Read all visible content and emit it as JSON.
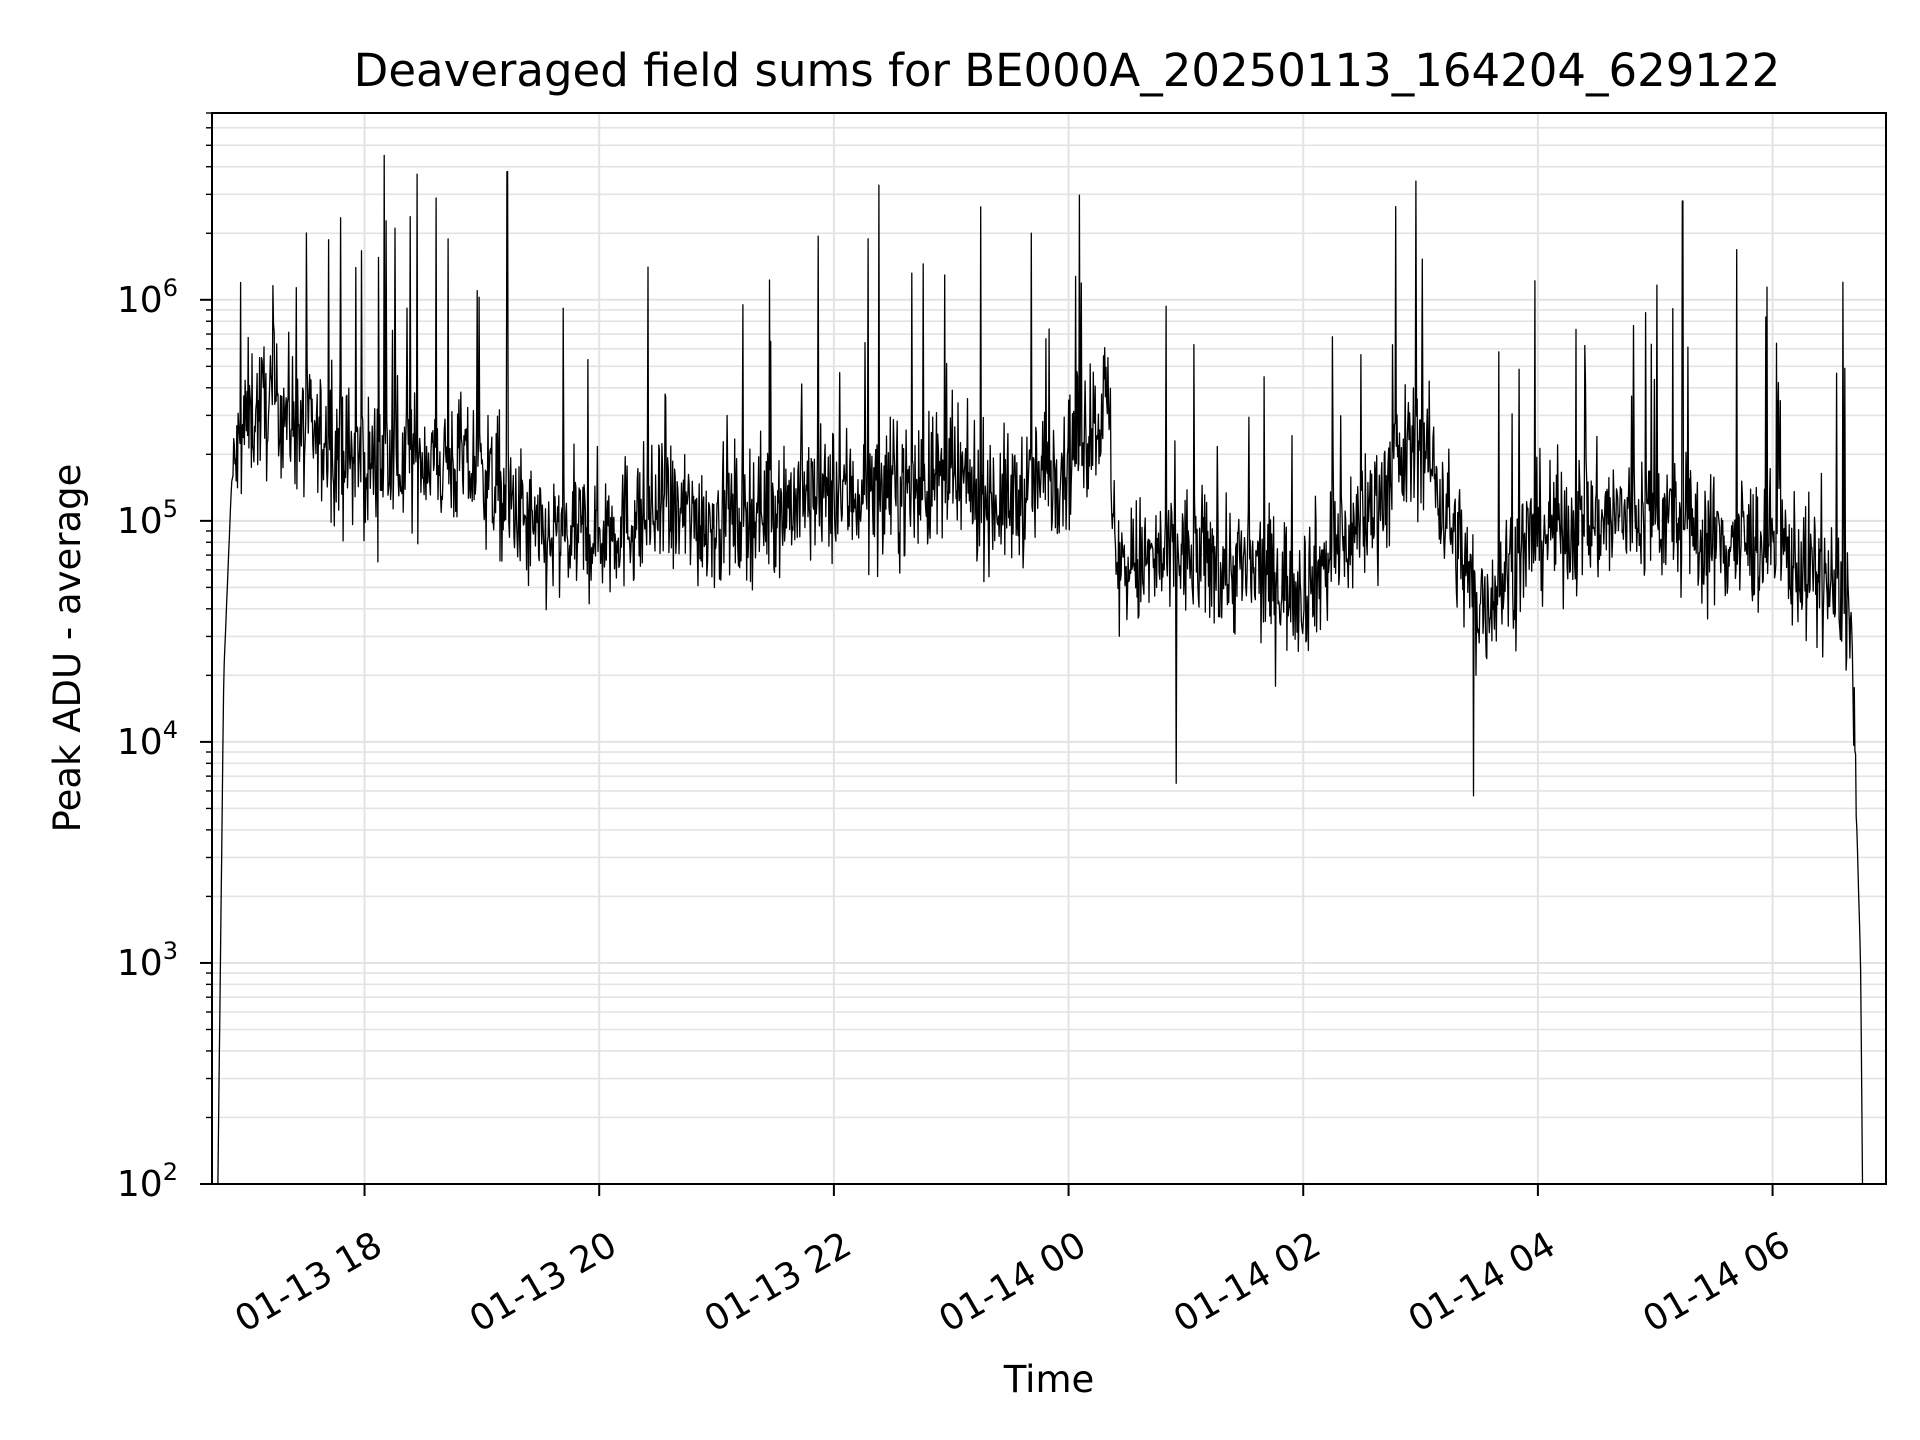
{
  "chart_data": {
    "type": "line",
    "title": "Deaveraged field sums for BE000A_20250113_164204_629122",
    "xlabel": "Time",
    "ylabel": "Peak ADU - average",
    "yscale": "log",
    "ylim": [
      100,
      7000000
    ],
    "xlim": [
      "2025-01-13 16:42",
      "2025-01-14 06:58"
    ],
    "grid": true,
    "line_color": "#000000",
    "x_ticks": [
      {
        "t": "2025-01-13 18:00",
        "label": "01-13 18"
      },
      {
        "t": "2025-01-13 20:00",
        "label": "01-13 20"
      },
      {
        "t": "2025-01-13 22:00",
        "label": "01-13 22"
      },
      {
        "t": "2025-01-14 00:00",
        "label": "01-14 00"
      },
      {
        "t": "2025-01-14 02:00",
        "label": "01-14 02"
      },
      {
        "t": "2025-01-14 04:00",
        "label": "01-14 04"
      },
      {
        "t": "2025-01-14 06:00",
        "label": "01-14 06"
      }
    ],
    "y_ticks": [
      {
        "value": 100,
        "base": "10",
        "exp": "2"
      },
      {
        "value": 1000,
        "base": "10",
        "exp": "3"
      },
      {
        "value": 10000,
        "base": "10",
        "exp": "4"
      },
      {
        "value": 100000,
        "base": "10",
        "exp": "5"
      },
      {
        "value": 1000000,
        "base": "10",
        "exp": "6"
      }
    ],
    "series": [
      {
        "description_points": [
          {
            "t": "2025-01-13 16:45",
            "y": 100
          },
          {
            "t": "2025-01-13 16:48",
            "y": 20000
          },
          {
            "t": "2025-01-13 16:52",
            "y": 150000
          },
          {
            "t": "2025-01-13 17:00",
            "y": 300000
          },
          {
            "t": "2025-01-13 17:15",
            "y": 350000
          },
          {
            "t": "2025-01-13 17:30",
            "y": 250000
          },
          {
            "t": "2025-01-13 18:00",
            "y": 180000
          },
          {
            "t": "2025-01-13 18:30",
            "y": 200000
          },
          {
            "t": "2025-01-13 19:00",
            "y": 170000
          },
          {
            "t": "2025-01-13 19:30",
            "y": 80000
          },
          {
            "t": "2025-01-13 20:00",
            "y": 90000
          },
          {
            "t": "2025-01-13 20:30",
            "y": 110000
          },
          {
            "t": "2025-01-13 21:00",
            "y": 100000
          },
          {
            "t": "2025-01-13 21:30",
            "y": 120000
          },
          {
            "t": "2025-01-13 22:00",
            "y": 130000
          },
          {
            "t": "2025-01-13 22:30",
            "y": 140000
          },
          {
            "t": "2025-01-13 23:00",
            "y": 150000
          },
          {
            "t": "2025-01-13 23:30",
            "y": 120000
          },
          {
            "t": "2025-01-14 00:00",
            "y": 200000
          },
          {
            "t": "2025-01-14 00:20",
            "y": 350000
          },
          {
            "t": "2025-01-14 00:25",
            "y": 60000
          },
          {
            "t": "2025-01-14 01:00",
            "y": 70000
          },
          {
            "t": "2025-01-14 01:30",
            "y": 60000
          },
          {
            "t": "2025-01-14 02:00",
            "y": 50000
          },
          {
            "t": "2025-01-14 02:30",
            "y": 100000
          },
          {
            "t": "2025-01-14 03:00",
            "y": 250000
          },
          {
            "t": "2025-01-14 03:30",
            "y": 40000
          },
          {
            "t": "2025-01-14 04:00",
            "y": 90000
          },
          {
            "t": "2025-01-14 04:30",
            "y": 100000
          },
          {
            "t": "2025-01-14 05:00",
            "y": 110000
          },
          {
            "t": "2025-01-14 05:30",
            "y": 80000
          },
          {
            "t": "2025-01-14 06:00",
            "y": 80000
          },
          {
            "t": "2025-01-14 06:30",
            "y": 50000
          },
          {
            "t": "2025-01-14 06:40",
            "y": 40000
          },
          {
            "t": "2025-01-14 06:45",
            "y": 1000
          },
          {
            "t": "2025-01-14 06:46",
            "y": 100
          }
        ],
        "peaks": [
          {
            "t": "2025-01-13 18:10",
            "y": 4500000
          },
          {
            "t": "2025-01-13 18:27",
            "y": 3700000
          },
          {
            "t": "2025-01-13 19:13",
            "y": 3800000
          },
          {
            "t": "2025-01-13 22:23",
            "y": 3300000
          },
          {
            "t": "2025-01-14 05:14",
            "y": 2800000
          },
          {
            "t": "2025-01-14 06:36",
            "y": 1200000
          }
        ],
        "troughs": [
          {
            "t": "2025-01-14 00:55",
            "y": 6500
          },
          {
            "t": "2025-01-14 03:27",
            "y": 5700
          }
        ]
      }
    ]
  }
}
